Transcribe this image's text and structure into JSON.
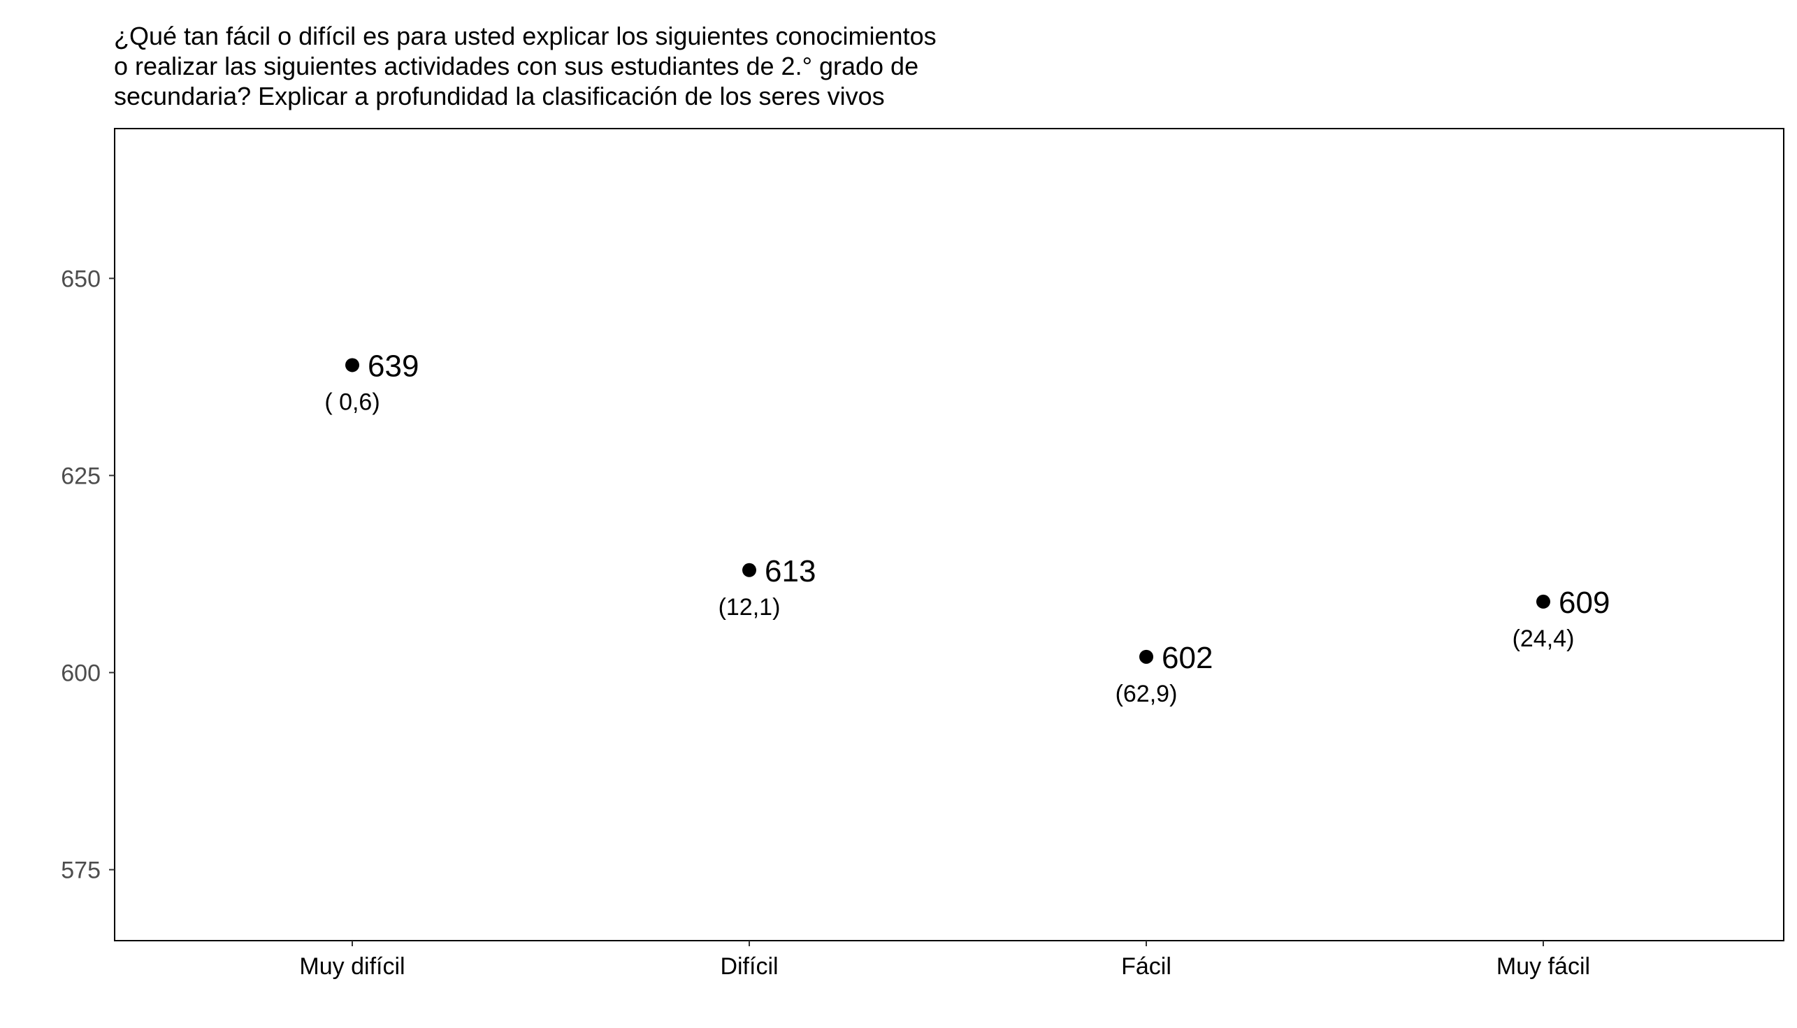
{
  "chart_data": {
    "type": "scatter",
    "title_lines": [
      "¿Qué tan fácil o difícil es para usted explicar los siguientes conocimientos",
      "o realizar las siguientes actividades con sus estudiantes de 2.° grado de",
      "secundaria? Explicar a profundidad la clasificación de los seres vivos"
    ],
    "xlabel": "",
    "ylabel": "",
    "categories": [
      "Muy difícil",
      "Difícil",
      "Fácil",
      "Muy fácil"
    ],
    "values": [
      639,
      613,
      602,
      609
    ],
    "value_labels": [
      "639",
      "613",
      "602",
      "609"
    ],
    "percent_labels": [
      "( 0,6)",
      "(12,1)",
      "(62,9)",
      "(24,4)"
    ],
    "ylim": [
      566,
      669
    ],
    "yticks": [
      575,
      600,
      625,
      650
    ],
    "grid": false,
    "legend": "none",
    "colors": {
      "point": "#000000",
      "frame": "#000000",
      "y_tick_text": "#4d4d4d"
    }
  }
}
